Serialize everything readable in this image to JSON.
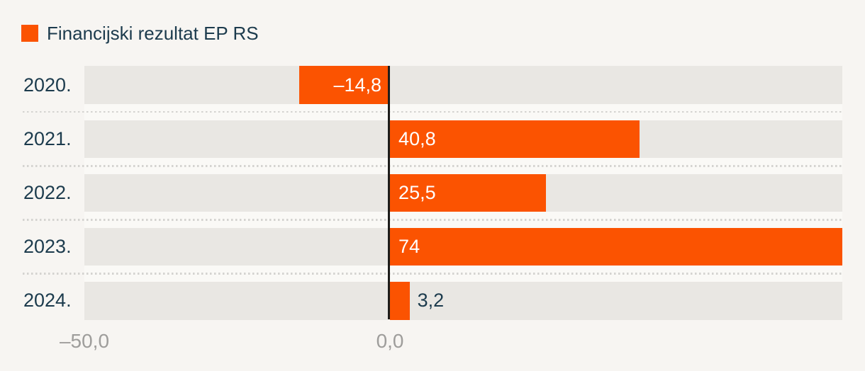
{
  "legend": {
    "label": "Financijski rezultat EP RS"
  },
  "chart_data": {
    "type": "bar",
    "orientation": "horizontal",
    "title": "",
    "categories": [
      "2020.",
      "2021.",
      "2022.",
      "2023.",
      "2024."
    ],
    "series": [
      {
        "name": "Financijski rezultat EP RS",
        "values": [
          -14.8,
          40.8,
          25.5,
          74,
          3.2
        ]
      }
    ],
    "value_labels": [
      "–14,8",
      "40,8",
      "25,5",
      "74",
      "3,2"
    ],
    "xlim": [
      -50,
      74
    ],
    "x_ticks": [
      {
        "value": -50,
        "label": "–50,0"
      },
      {
        "value": 0,
        "label": "0,0"
      }
    ],
    "grid": "dotted-row-separators",
    "legend_position": "top-left"
  },
  "colors": {
    "bar": "#fb5301",
    "track": "#e9e7e3",
    "background": "#f7f5f2",
    "row_gap": "#faf9f6",
    "category_text": "#1c3b4d",
    "value_text_inside": "#ffffff",
    "value_text_outside": "#1c3b4d",
    "axis_text": "#9e9d9b",
    "separator": "#d4d3d0",
    "zero_line": "#1d1d1b"
  }
}
